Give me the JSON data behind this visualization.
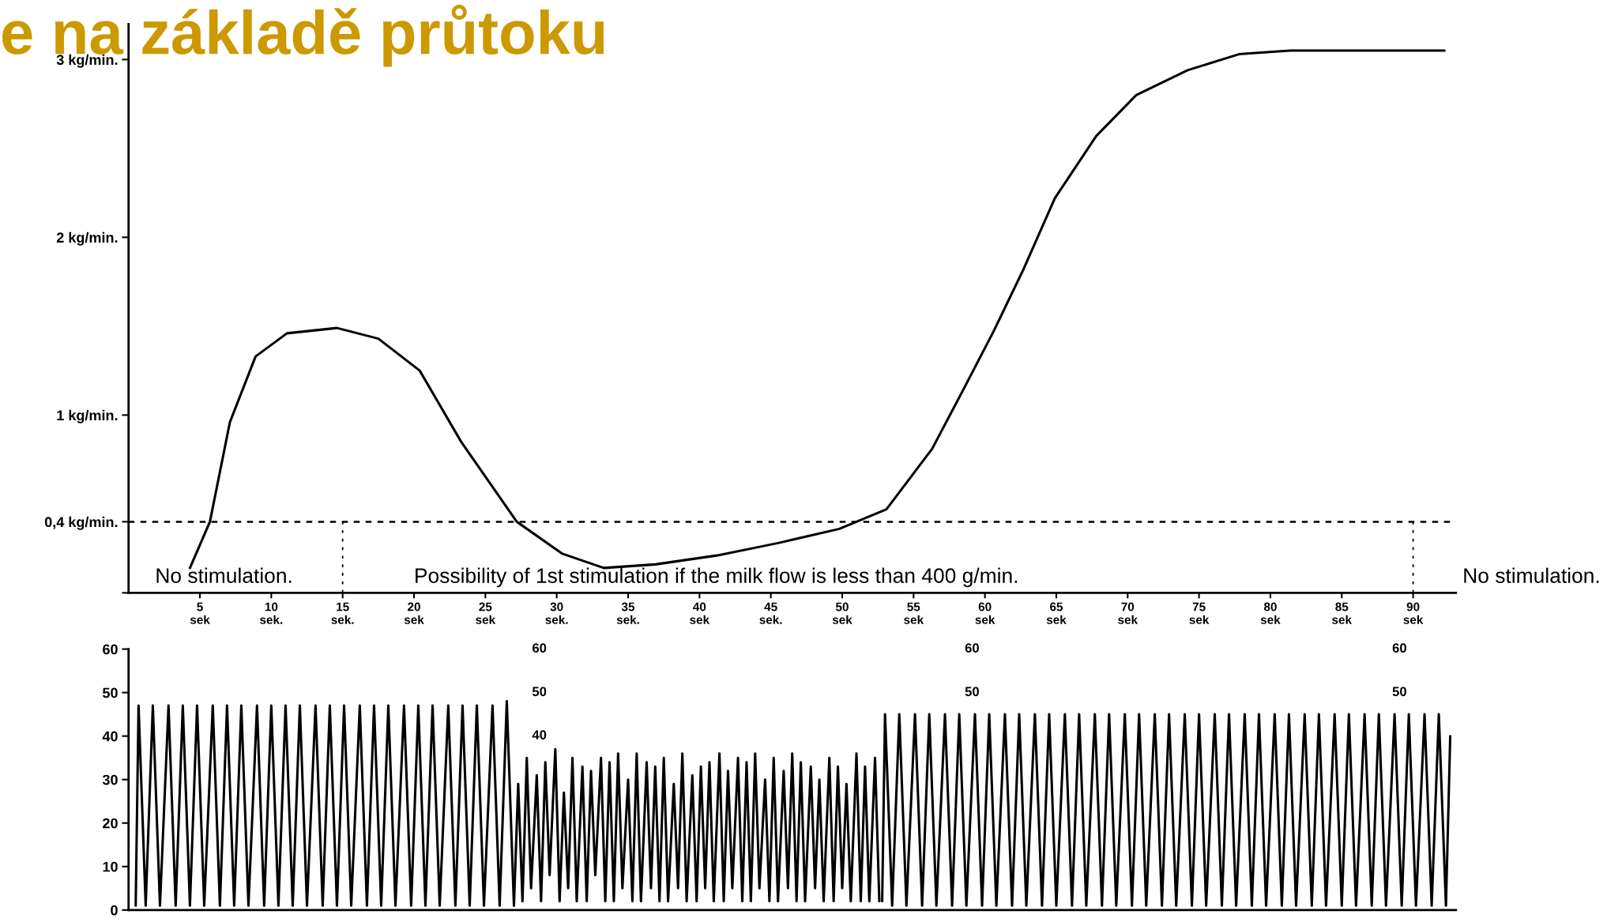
{
  "chart_data": [
    {
      "type": "line",
      "title": "e na základě průtoku",
      "xlim": [
        0,
        93
      ],
      "ylim": [
        0,
        3.2
      ],
      "xticks": [
        {
          "value": 5,
          "label": "5\nsek"
        },
        {
          "value": 10,
          "label": "10\nsek."
        },
        {
          "value": 15,
          "label": "15\nsek."
        },
        {
          "value": 20,
          "label": "20\nsek"
        },
        {
          "value": 25,
          "label": "25\nsek"
        },
        {
          "value": 30,
          "label": "30\nsek."
        },
        {
          "value": 35,
          "label": "35\nsek."
        },
        {
          "value": 40,
          "label": "40\nsek"
        },
        {
          "value": 45,
          "label": "45\nsek."
        },
        {
          "value": 50,
          "label": "50\nsek"
        },
        {
          "value": 55,
          "label": "55\nsek"
        },
        {
          "value": 60,
          "label": "60\nsek"
        },
        {
          "value": 65,
          "label": "65\nsek"
        },
        {
          "value": 70,
          "label": "70\nsek"
        },
        {
          "value": 75,
          "label": "75\nsek"
        },
        {
          "value": 80,
          "label": "80\nsek"
        },
        {
          "value": 85,
          "label": "85\nsek"
        },
        {
          "value": 90,
          "label": "90\nsek"
        }
      ],
      "yticks": [
        {
          "value": 0,
          "label": null
        },
        {
          "value": 0.4,
          "label": "0,4 kg/min."
        },
        {
          "value": 1,
          "label": "1 kg/min."
        },
        {
          "value": 2,
          "label": "2 kg/min."
        },
        {
          "value": 3,
          "label": "3 kg/min."
        }
      ],
      "series": [
        {
          "color": "#000000",
          "x": [
            4.3,
            5.7,
            7.1,
            8.9,
            11.1,
            14.6,
            17.5,
            20.4,
            23.3,
            27.2,
            30.4,
            33.3,
            36.9,
            41.2,
            45.5,
            49.8,
            53.1,
            56.3,
            58.4,
            60.6,
            62.7,
            64.9,
            67.8,
            70.6,
            74.2,
            77.8,
            81.4,
            92.2
          ],
          "values": [
            0.14,
            0.4,
            0.96,
            1.33,
            1.46,
            1.49,
            1.43,
            1.25,
            0.85,
            0.4,
            0.22,
            0.14,
            0.16,
            0.21,
            0.28,
            0.36,
            0.47,
            0.81,
            1.13,
            1.47,
            1.82,
            2.22,
            2.57,
            2.8,
            2.94,
            3.03,
            3.05,
            3.05
          ]
        }
      ],
      "ref_lines": [
        {
          "axis": "y",
          "value": 0.4,
          "line_style": "dashed",
          "color": "#000000"
        },
        {
          "axis": "x",
          "value": 15,
          "line_style": "dotted",
          "color": "#000000"
        },
        {
          "axis": "x",
          "value": 90,
          "line_style": "dotted",
          "color": "#000000"
        }
      ],
      "annotations": [
        "No stimulation.",
        "Possibility of 1st stimulation if the milk flow is less than 400 g/min.",
        "No stimulation."
      ]
    },
    {
      "type": "line",
      "xlim": [
        0,
        93
      ],
      "ylim": [
        0,
        60
      ],
      "tick_labels": "y",
      "yticks": [
        0,
        10,
        20,
        30,
        40,
        50,
        60
      ],
      "series": [
        {
          "color": "#000000",
          "x": [
            0.5,
            0.7,
            1.2,
            1.7,
            2.2,
            2.8,
            3.3,
            3.8,
            4.3,
            4.8,
            5.3,
            5.9,
            6.4,
            6.9,
            7.4,
            7.9,
            8.4,
            9.0,
            9.5,
            10.0,
            10.5,
            11.0,
            11.5,
            12.0,
            12.5,
            13.1,
            13.6,
            14.1,
            14.6,
            15.1,
            15.6,
            16.2,
            16.7,
            17.2,
            17.7,
            18.2,
            18.7,
            19.3,
            19.8,
            20.3,
            20.8,
            21.3,
            21.8,
            22.4,
            22.9,
            23.4,
            23.9,
            24.4,
            24.9,
            25.5,
            26.0,
            26.5,
            27.0
          ],
          "values": [
            1,
            47,
            1,
            47,
            1,
            47,
            1,
            47,
            1,
            47,
            1,
            47,
            1,
            47,
            1,
            47,
            1,
            47,
            1,
            47,
            1,
            47,
            1,
            47,
            1,
            47,
            1,
            47,
            1,
            47,
            1,
            47,
            1,
            47,
            1,
            47,
            1,
            47,
            1,
            47,
            1,
            47,
            1,
            47,
            1,
            47,
            1,
            47,
            1,
            47,
            1,
            48,
            1
          ]
        },
        {
          "color": "#000000",
          "x": [
            27.0,
            27.3,
            27.6,
            27.9,
            28.2,
            28.6,
            28.9,
            29.2,
            29.5,
            29.9,
            30.2,
            30.5,
            30.8,
            31.1,
            31.4,
            31.8,
            32.1,
            32.4,
            32.7,
            33.1,
            33.4,
            33.7,
            34.0,
            34.3,
            34.6,
            35.0,
            35.3,
            35.6,
            35.9,
            36.3,
            36.6,
            36.9,
            37.2,
            37.5,
            37.8,
            38.2,
            38.5,
            38.8,
            39.1,
            39.5,
            39.8,
            40.1,
            40.4,
            40.7,
            41.0,
            41.4,
            41.7,
            42.0,
            42.3,
            42.7,
            43.0,
            43.3,
            43.6,
            43.9,
            44.2,
            44.6,
            44.9,
            45.2,
            45.5,
            45.9,
            46.2,
            46.5,
            46.8,
            47.1,
            47.4,
            47.8,
            48.1,
            48.4,
            48.7,
            49.1,
            49.4,
            49.7,
            50.0,
            50.3,
            50.6,
            51.0,
            51.3,
            51.6,
            51.9,
            52.3,
            52.6
          ],
          "values": [
            1,
            29,
            2,
            35,
            5,
            31,
            2,
            34,
            8,
            37,
            2,
            27,
            5,
            35,
            2,
            33,
            2,
            32,
            8,
            35,
            2,
            34,
            2,
            36,
            5,
            30,
            2,
            36,
            2,
            34,
            5,
            33,
            2,
            35,
            2,
            29,
            5,
            36,
            2,
            31,
            2,
            33,
            5,
            34,
            2,
            36,
            2,
            32,
            5,
            35,
            2,
            34,
            2,
            36,
            5,
            30,
            2,
            35,
            2,
            32,
            5,
            36,
            2,
            34,
            2,
            33,
            5,
            30,
            2,
            35,
            2,
            33,
            5,
            29,
            2,
            36,
            2,
            33,
            2,
            35,
            2
          ]
        },
        {
          "color": "#000000",
          "x": [
            52.8,
            53.0,
            53.5,
            54.0,
            54.5,
            55.1,
            55.6,
            56.1,
            56.6,
            57.2,
            57.7,
            58.2,
            58.7,
            59.3,
            59.8,
            60.3,
            60.8,
            61.4,
            61.9,
            62.4,
            62.9,
            63.5,
            64.0,
            64.5,
            65.0,
            65.6,
            66.1,
            66.6,
            67.1,
            67.7,
            68.2,
            68.7,
            69.2,
            69.8,
            70.3,
            70.8,
            71.3,
            71.9,
            72.4,
            72.9,
            73.4,
            74.0,
            74.5,
            75.0,
            75.5,
            76.1,
            76.6,
            77.1,
            77.6,
            78.2,
            78.7,
            79.2,
            79.7,
            80.3,
            80.8,
            81.3,
            81.8,
            82.4,
            82.9,
            83.4,
            83.9,
            84.5,
            85.0,
            85.5,
            86.0,
            86.6,
            87.1,
            87.6,
            88.1,
            88.7,
            89.2,
            89.7,
            90.2,
            90.8,
            91.3,
            91.8,
            92.3,
            92.6
          ],
          "values": [
            2,
            45,
            1,
            45,
            1,
            45,
            1,
            45,
            1,
            45,
            1,
            45,
            1,
            45,
            1,
            45,
            1,
            45,
            1,
            45,
            1,
            45,
            1,
            45,
            1,
            45,
            1,
            45,
            1,
            45,
            1,
            45,
            1,
            45,
            1,
            45,
            1,
            45,
            1,
            45,
            1,
            45,
            1,
            45,
            1,
            45,
            1,
            45,
            1,
            45,
            1,
            45,
            1,
            45,
            1,
            45,
            1,
            45,
            1,
            45,
            1,
            45,
            1,
            45,
            1,
            45,
            1,
            45,
            1,
            45,
            1,
            45,
            1,
            45,
            1,
            45,
            1,
            40
          ]
        }
      ],
      "annotations": [
        "60",
        "50",
        "40",
        "60",
        "50",
        "60",
        "50"
      ]
    }
  ]
}
